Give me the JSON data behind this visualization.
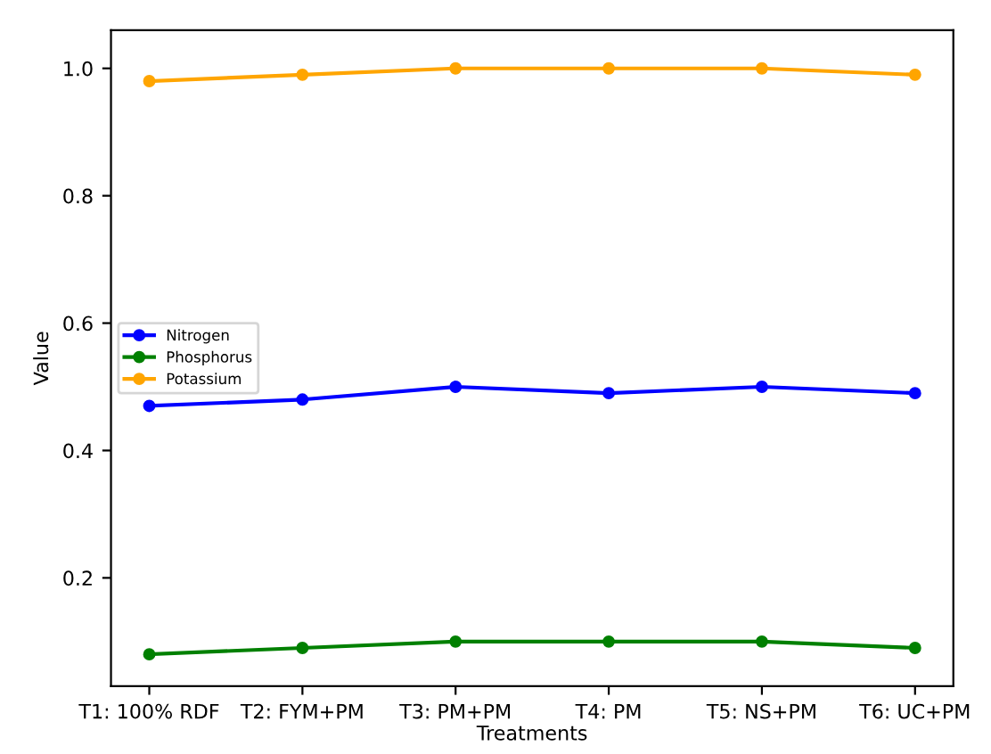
{
  "chart_data": {
    "type": "line",
    "xlabel": "Treatments",
    "ylabel": "Value",
    "categories": [
      "T1: 100% RDF",
      "T2: FYM+PM",
      "T3: PM+PM",
      "T4: PM",
      "T5: NS+PM",
      "T6: UC+PM"
    ],
    "series": [
      {
        "name": "Nitrogen",
        "color": "#0000ff",
        "values": [
          0.47,
          0.48,
          0.5,
          0.49,
          0.5,
          0.49
        ]
      },
      {
        "name": "Phosphorus",
        "color": "#008000",
        "values": [
          0.08,
          0.09,
          0.1,
          0.1,
          0.1,
          0.09
        ]
      },
      {
        "name": "Potassium",
        "color": "#ffa500",
        "values": [
          0.98,
          0.99,
          1.0,
          1.0,
          1.0,
          0.99
        ]
      }
    ],
    "ylim": [
      0.03,
      1.06
    ],
    "yticks": [
      0.2,
      0.4,
      0.6,
      0.8,
      {
        "value": 1,
        "label": "1.0"
      }
    ],
    "marker": "circle",
    "legend": "center left",
    "grid": false
  }
}
